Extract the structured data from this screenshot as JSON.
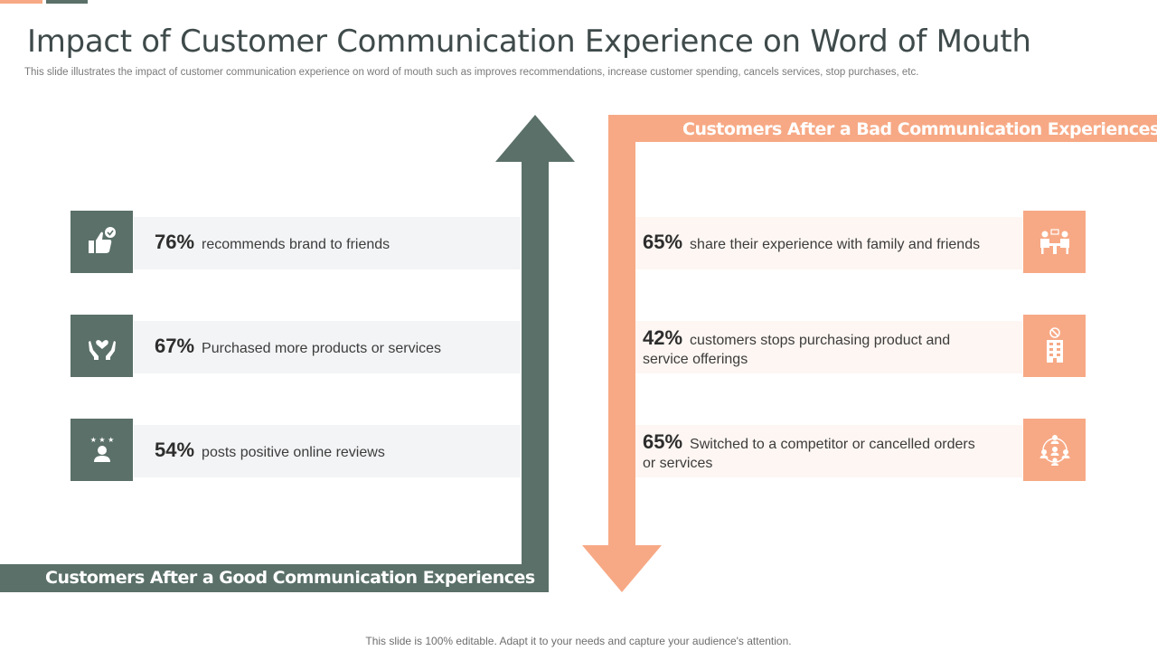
{
  "header": {
    "title": "Impact of Customer Communication Experience on Word of Mouth",
    "subtitle": "This slide illustrates the impact of customer communication experience on word of mouth such as improves recommendations, increase customer spending, cancels services, stop purchases, etc."
  },
  "good": {
    "label": "Customers After a Good Communication Experiences",
    "items": [
      {
        "pct": "76%",
        "text": "recommends brand to friends",
        "icon": "thumbs-up-check-icon"
      },
      {
        "pct": "67%",
        "text": "Purchased more products or services",
        "icon": "hands-holding-heart-icon"
      },
      {
        "pct": "54%",
        "text": "posts positive online reviews",
        "icon": "user-stars-review-icon"
      }
    ]
  },
  "bad": {
    "label": "Customers After a Bad Communication Experiences",
    "items": [
      {
        "pct": "65%",
        "text": "share their experience with family and friends",
        "icon": "people-meeting-table-icon"
      },
      {
        "pct": "42%",
        "text": "customers stops purchasing product and service offerings",
        "icon": "building-no-entry-icon"
      },
      {
        "pct": "65%",
        "text": "Switched to a competitor or cancelled orders or services",
        "icon": "network-people-icon"
      }
    ]
  },
  "footer": {
    "text": "This slide is 100% editable. Adapt it to your needs and capture your audience's attention."
  },
  "colors": {
    "green": "#5a7069",
    "orange": "#f7a985"
  }
}
